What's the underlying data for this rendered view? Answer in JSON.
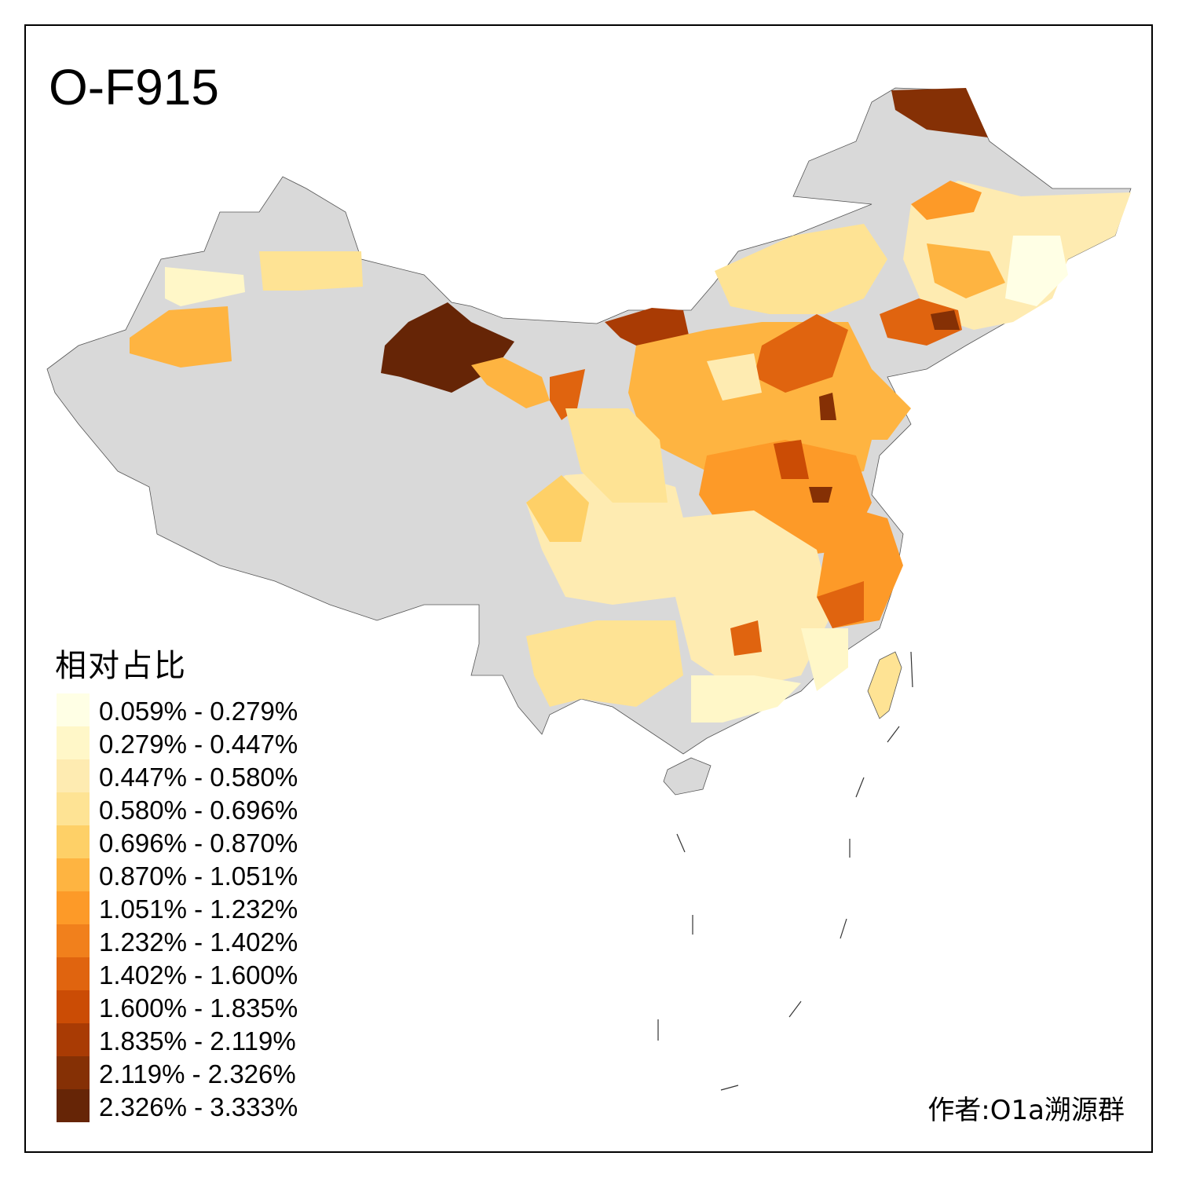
{
  "title": "O-F915",
  "legend": {
    "title": "相对占比",
    "classes": [
      {
        "label": "0.059% - 0.279%",
        "color": "#FFFFE5"
      },
      {
        "label": "0.279% - 0.447%",
        "color": "#FFF7C8"
      },
      {
        "label": "0.447% - 0.580%",
        "color": "#FEEBB1"
      },
      {
        "label": "0.580% - 0.696%",
        "color": "#FEE394"
      },
      {
        "label": "0.696% - 0.870%",
        "color": "#FED067"
      },
      {
        "label": "0.870% - 1.051%",
        "color": "#FEB441"
      },
      {
        "label": "1.051% - 1.232%",
        "color": "#FD9A28"
      },
      {
        "label": "1.232% - 1.402%",
        "color": "#F1801C"
      },
      {
        "label": "1.402% - 1.600%",
        "color": "#E0640F"
      },
      {
        "label": "1.600% - 1.835%",
        "color": "#CB4C05"
      },
      {
        "label": "1.835% - 2.119%",
        "color": "#A93B04"
      },
      {
        "label": "2.119% - 2.326%",
        "color": "#853005"
      },
      {
        "label": "2.326% - 3.333%",
        "color": "#662506"
      }
    ]
  },
  "no_data_color": "#D9D9D9",
  "author": "作者:O1a溯源群"
}
